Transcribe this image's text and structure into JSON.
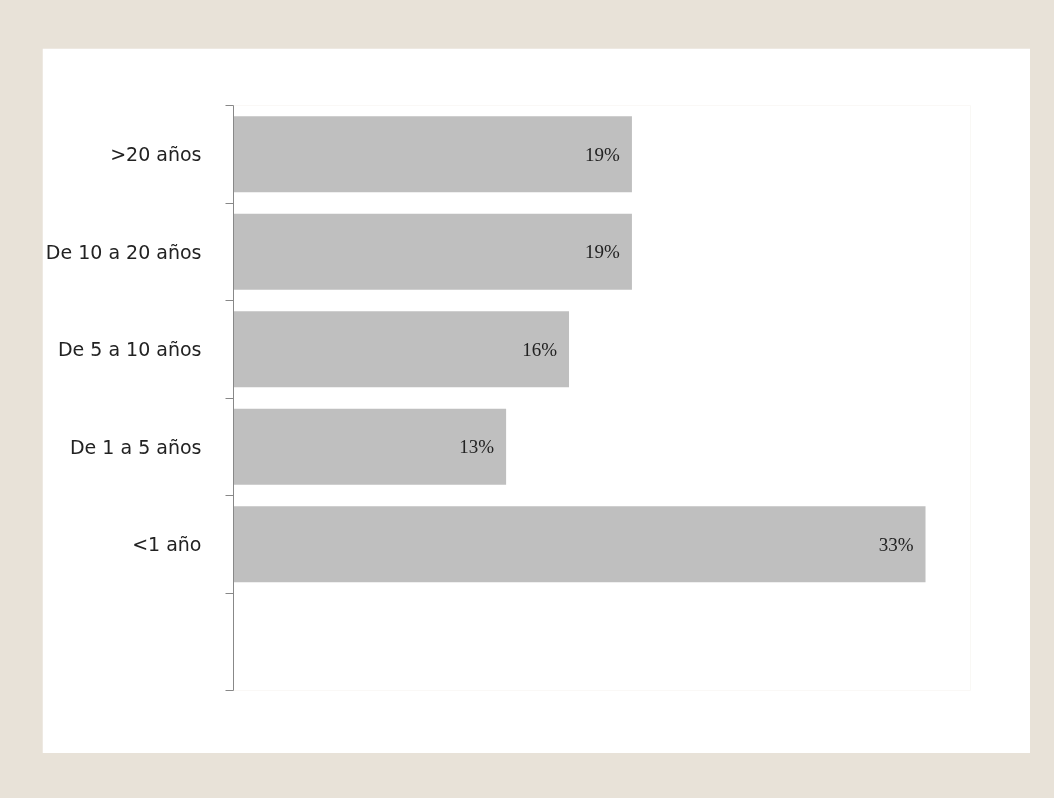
{
  "chart_data": {
    "type": "bar",
    "orientation": "horizontal",
    "categories": [
      ">20 años",
      "De 10 a 20 años",
      "De 5 a 10 años",
      "De 1 a 5 años",
      "<1 año",
      null
    ],
    "values": [
      19,
      19,
      16,
      13,
      33,
      null
    ],
    "value_labels": [
      "19%",
      "19%",
      "16%",
      "13%",
      "33%",
      null
    ],
    "color": "#bfbfbf",
    "grid": false
  }
}
